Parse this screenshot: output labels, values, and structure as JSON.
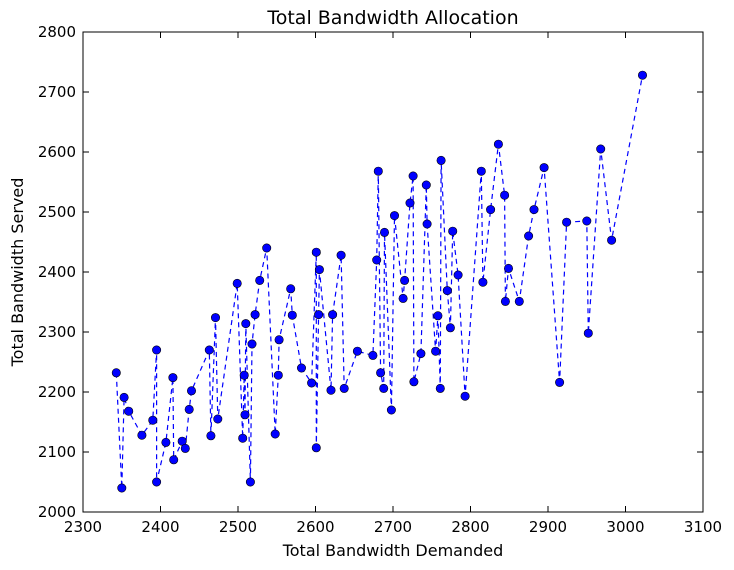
{
  "chart_data": {
    "type": "line",
    "title": "Total Bandwidth Allocation",
    "xlabel": "Total Bandwidth Demanded",
    "ylabel": "Total Bandwidth Served",
    "xlim": [
      2300,
      3100
    ],
    "ylim": [
      2000,
      2800
    ],
    "xticks": [
      "2300",
      "2400",
      "2500",
      "2600",
      "2700",
      "2800",
      "2900",
      "3000",
      "3100"
    ],
    "yticks": [
      "2000",
      "2100",
      "2200",
      "2300",
      "2400",
      "2500",
      "2600",
      "2700",
      "2800"
    ],
    "grid": false,
    "line_style": "dashed",
    "marker": "circle",
    "color": "#0000ff",
    "series": [
      {
        "points": [
          [
            2343,
            2232
          ],
          [
            2350,
            2040
          ],
          [
            2353,
            2191
          ],
          [
            2359,
            2168
          ],
          [
            2376,
            2128
          ],
          [
            2390,
            2153
          ],
          [
            2395,
            2270
          ],
          [
            2395,
            2050
          ],
          [
            2407,
            2116
          ],
          [
            2416,
            2224
          ],
          [
            2417,
            2087
          ],
          [
            2428,
            2118
          ],
          [
            2432,
            2106
          ],
          [
            2437,
            2171
          ],
          [
            2440,
            2202
          ],
          [
            2463,
            2270
          ],
          [
            2465,
            2127
          ],
          [
            2471,
            2324
          ],
          [
            2474,
            2155
          ],
          [
            2499,
            2381
          ],
          [
            2506,
            2123
          ],
          [
            2508,
            2228
          ],
          [
            2509,
            2162
          ],
          [
            2510,
            2314
          ],
          [
            2516,
            2050
          ],
          [
            2518,
            2280
          ],
          [
            2522,
            2329
          ],
          [
            2528,
            2386
          ],
          [
            2537,
            2440
          ],
          [
            2548,
            2130
          ],
          [
            2552,
            2228
          ],
          [
            2553,
            2287
          ],
          [
            2568,
            2372
          ],
          [
            2570,
            2328
          ],
          [
            2582,
            2240
          ],
          [
            2595,
            2215
          ],
          [
            2601,
            2433
          ],
          [
            2601,
            2107
          ],
          [
            2604,
            2329
          ],
          [
            2605,
            2404
          ],
          [
            2620,
            2203
          ],
          [
            2622,
            2329
          ],
          [
            2633,
            2428
          ],
          [
            2637,
            2206
          ],
          [
            2654,
            2268
          ],
          [
            2674,
            2261
          ],
          [
            2679,
            2420
          ],
          [
            2681,
            2568
          ],
          [
            2684,
            2232
          ],
          [
            2688,
            2206
          ],
          [
            2689,
            2466
          ],
          [
            2698,
            2170
          ],
          [
            2702,
            2494
          ],
          [
            2713,
            2356
          ],
          [
            2715,
            2386
          ],
          [
            2722,
            2515
          ],
          [
            2726,
            2560
          ],
          [
            2727,
            2217
          ],
          [
            2736,
            2264
          ],
          [
            2743,
            2545
          ],
          [
            2744,
            2480
          ],
          [
            2755,
            2268
          ],
          [
            2758,
            2327
          ],
          [
            2761,
            2206
          ],
          [
            2762,
            2586
          ],
          [
            2770,
            2369
          ],
          [
            2774,
            2307
          ],
          [
            2777,
            2468
          ],
          [
            2784,
            2395
          ],
          [
            2793,
            2193
          ],
          [
            2814,
            2568
          ],
          [
            2816,
            2383
          ],
          [
            2826,
            2504
          ],
          [
            2836,
            2613
          ],
          [
            2844,
            2528
          ],
          [
            2845,
            2351
          ],
          [
            2849,
            2406
          ],
          [
            2863,
            2351
          ],
          [
            2875,
            2460
          ],
          [
            2882,
            2504
          ],
          [
            2895,
            2574
          ],
          [
            2915,
            2216
          ],
          [
            2924,
            2483
          ],
          [
            2950,
            2485
          ],
          [
            2952,
            2298
          ],
          [
            2968,
            2605
          ],
          [
            2982,
            2453
          ],
          [
            3022,
            2728
          ]
        ]
      }
    ]
  }
}
